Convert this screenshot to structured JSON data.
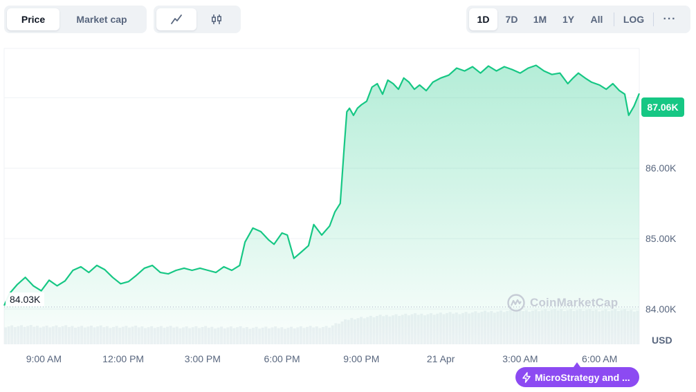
{
  "toolbar": {
    "type_tabs": [
      {
        "label": "Price",
        "active": true
      },
      {
        "label": "Market cap",
        "active": false
      }
    ],
    "chart_type_icons": [
      {
        "icon": "line-chart-icon",
        "active": true
      },
      {
        "icon": "candlestick-icon",
        "active": false
      }
    ],
    "ranges": [
      {
        "label": "1D",
        "active": true
      },
      {
        "label": "7D",
        "active": false
      },
      {
        "label": "1M",
        "active": false
      },
      {
        "label": "1Y",
        "active": false
      },
      {
        "label": "All",
        "active": false
      }
    ],
    "log_label": "LOG",
    "more_label": "···"
  },
  "chart_data": {
    "type": "area",
    "x_ticks": [
      "9:00 AM",
      "12:00 PM",
      "3:00 PM",
      "6:00 PM",
      "9:00 PM",
      "21 Apr",
      "3:00 AM",
      "6:00 AM"
    ],
    "x_range_hours": [
      7.5,
      31.5
    ],
    "y_ticks": [
      "84.00K",
      "85.00K",
      "86.00K"
    ],
    "ylim": [
      83.5,
      87.7
    ],
    "y_unit": "USD",
    "current_price_label": "87.06K",
    "open_price_label": "84.03K",
    "open_price": 84.03,
    "series": [
      {
        "values": [
          [
            7.5,
            84.05
          ],
          [
            7.7,
            84.22
          ],
          [
            8.0,
            84.35
          ],
          [
            8.3,
            84.45
          ],
          [
            8.6,
            84.33
          ],
          [
            8.9,
            84.26
          ],
          [
            9.2,
            84.41
          ],
          [
            9.5,
            84.33
          ],
          [
            9.8,
            84.4
          ],
          [
            10.1,
            84.55
          ],
          [
            10.4,
            84.6
          ],
          [
            10.7,
            84.52
          ],
          [
            11.0,
            84.62
          ],
          [
            11.3,
            84.56
          ],
          [
            11.6,
            84.45
          ],
          [
            11.9,
            84.36
          ],
          [
            12.2,
            84.39
          ],
          [
            12.5,
            84.48
          ],
          [
            12.8,
            84.58
          ],
          [
            13.1,
            84.62
          ],
          [
            13.4,
            84.52
          ],
          [
            13.7,
            84.5
          ],
          [
            14.0,
            84.55
          ],
          [
            14.3,
            84.58
          ],
          [
            14.6,
            84.55
          ],
          [
            14.9,
            84.58
          ],
          [
            15.2,
            84.55
          ],
          [
            15.5,
            84.52
          ],
          [
            15.8,
            84.6
          ],
          [
            16.1,
            84.55
          ],
          [
            16.4,
            84.62
          ],
          [
            16.6,
            84.95
          ],
          [
            16.9,
            85.15
          ],
          [
            17.2,
            85.1
          ],
          [
            17.5,
            84.98
          ],
          [
            17.7,
            84.92
          ],
          [
            18.0,
            85.08
          ],
          [
            18.2,
            85.05
          ],
          [
            18.45,
            84.72
          ],
          [
            18.7,
            84.8
          ],
          [
            19.0,
            84.9
          ],
          [
            19.2,
            85.2
          ],
          [
            19.5,
            85.05
          ],
          [
            19.8,
            85.18
          ],
          [
            20.0,
            85.38
          ],
          [
            20.2,
            85.5
          ],
          [
            20.35,
            86.3
          ],
          [
            20.45,
            86.8
          ],
          [
            20.55,
            86.85
          ],
          [
            20.7,
            86.75
          ],
          [
            20.85,
            86.85
          ],
          [
            21.0,
            86.9
          ],
          [
            21.2,
            86.95
          ],
          [
            21.4,
            87.15
          ],
          [
            21.6,
            87.2
          ],
          [
            21.8,
            87.05
          ],
          [
            22.0,
            87.25
          ],
          [
            22.2,
            87.2
          ],
          [
            22.4,
            87.12
          ],
          [
            22.6,
            87.28
          ],
          [
            22.8,
            87.22
          ],
          [
            23.0,
            87.12
          ],
          [
            23.2,
            87.18
          ],
          [
            23.45,
            87.1
          ],
          [
            23.7,
            87.22
          ],
          [
            24.0,
            87.28
          ],
          [
            24.3,
            87.32
          ],
          [
            24.6,
            87.42
          ],
          [
            24.9,
            87.38
          ],
          [
            25.2,
            87.44
          ],
          [
            25.5,
            87.35
          ],
          [
            25.8,
            87.45
          ],
          [
            26.1,
            87.38
          ],
          [
            26.4,
            87.44
          ],
          [
            26.7,
            87.4
          ],
          [
            27.0,
            87.35
          ],
          [
            27.3,
            87.42
          ],
          [
            27.6,
            87.46
          ],
          [
            27.9,
            87.38
          ],
          [
            28.2,
            87.33
          ],
          [
            28.5,
            87.35
          ],
          [
            28.8,
            87.2
          ],
          [
            29.0,
            87.28
          ],
          [
            29.2,
            87.35
          ],
          [
            29.45,
            87.28
          ],
          [
            29.7,
            87.22
          ],
          [
            30.0,
            87.18
          ],
          [
            30.25,
            87.12
          ],
          [
            30.5,
            87.2
          ],
          [
            30.75,
            87.1
          ],
          [
            30.95,
            87.05
          ],
          [
            31.1,
            86.75
          ],
          [
            31.3,
            86.88
          ],
          [
            31.5,
            87.06
          ]
        ]
      }
    ],
    "volume": {
      "bars": 200,
      "levels": [
        [
          7.5,
          0.34
        ],
        [
          18.0,
          0.31
        ],
        [
          19.8,
          0.33
        ],
        [
          20.6,
          0.48
        ],
        [
          22.0,
          0.54
        ],
        [
          24.5,
          0.58
        ],
        [
          26.5,
          0.62
        ],
        [
          28.5,
          0.64
        ],
        [
          31.5,
          0.63
        ]
      ]
    },
    "grid": "horizontal"
  },
  "watermark": {
    "text": "CoinMarketCap"
  },
  "news": {
    "label": "MicroStrategy and ...",
    "icon": "lightning-icon"
  },
  "colors": {
    "line": "#16c784",
    "badge": "#16c784",
    "news": "#8c4af2",
    "axis_text": "#58667e"
  }
}
